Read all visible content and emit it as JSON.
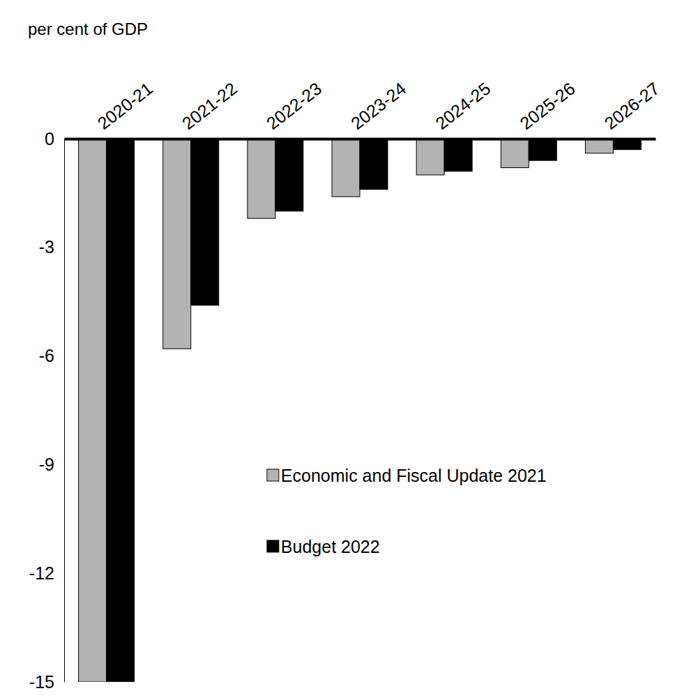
{
  "chart_data": {
    "type": "bar",
    "y_label": "per cent of GDP",
    "categories": [
      "2020-21",
      "2021-22",
      "2022-23",
      "2023-24",
      "2024-25",
      "2025-26",
      "2026-27"
    ],
    "series": [
      {
        "name": "Economic and Fiscal Update 2021",
        "color": "#b3b3b3",
        "values": [
          -15.0,
          -5.8,
          -2.2,
          -1.6,
          -1.0,
          -0.8,
          -0.4
        ]
      },
      {
        "name": "Budget 2022",
        "color": "#000000",
        "values": [
          -15.0,
          -4.6,
          -2.0,
          -1.4,
          -0.9,
          -0.6,
          -0.3
        ]
      }
    ],
    "ylim": [
      -15,
      0
    ],
    "yticks": [
      -15,
      -12,
      -9,
      -6,
      -3,
      0
    ],
    "grid": false,
    "legend": "right"
  }
}
